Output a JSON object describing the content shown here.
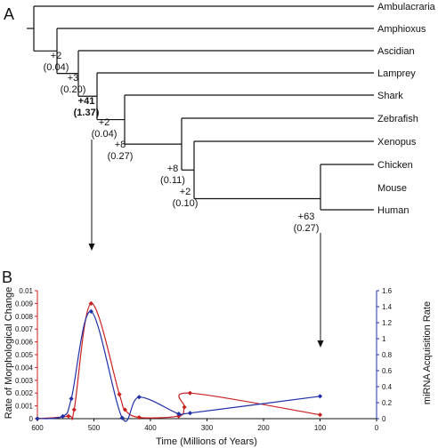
{
  "panel_a": {
    "letter": "A",
    "taxa": [
      "Ambulacraria",
      "Amphioxus",
      "Ascidian",
      "Lamprey",
      "Shark",
      "Zebrafish",
      "Xenopus",
      "Chicken",
      "Mouse",
      "Human"
    ],
    "node_labels": [
      {
        "gain": "+2",
        "rate": "(0.04)",
        "bold": false
      },
      {
        "gain": "+3",
        "rate": "(0.20)",
        "bold": false
      },
      {
        "gain": "+41",
        "rate": "(1.37)",
        "bold": true
      },
      {
        "gain": "+2",
        "rate": "(0.04)",
        "bold": false
      },
      {
        "gain": "+8",
        "rate": "(0.27)",
        "bold": false
      },
      {
        "gain": "+8",
        "rate": "(0.11)",
        "bold": false
      },
      {
        "gain": "+2",
        "rate": "(0.10)",
        "bold": false
      },
      {
        "gain": "+63",
        "rate": "(0.27)",
        "bold": false
      }
    ]
  },
  "panel_b": {
    "letter": "B"
  },
  "colors": {
    "morphology": "#cc1f1f",
    "mirna": "#1f2fa8",
    "tree": "#111111"
  },
  "chart_data": {
    "type": "line",
    "xlabel": "Time (Millions of Years)",
    "ylabel_left": "Rate of Morphological Change",
    "ylabel_right": "miRNA Acquisition Rate",
    "xlim": [
      600,
      0
    ],
    "x_ticks": [
      600,
      500,
      400,
      300,
      200,
      100,
      0
    ],
    "ylim_left": [
      0,
      0.01
    ],
    "y_ticks_left": [
      0,
      0.001,
      0.002,
      0.003,
      0.004,
      0.005,
      0.006,
      0.007,
      0.008,
      0.009,
      0.01
    ],
    "ylim_right": [
      0,
      1.6
    ],
    "y_ticks_right": [
      0,
      0.2,
      0.4,
      0.6,
      0.8,
      1,
      1.2,
      1.4,
      1.6
    ],
    "series": [
      {
        "axis": "left",
        "x": [
          600,
          545,
          535,
          505,
          455,
          445,
          420,
          350,
          340,
          330,
          100
        ],
        "y": [
          0,
          0.0002,
          0.0007,
          0.009,
          0.0019,
          0.0007,
          0.0001,
          0.0002,
          0.0009,
          0.002,
          0.0003
        ]
      },
      {
        "axis": "right",
        "x": [
          600,
          555,
          540,
          505,
          450,
          420,
          350,
          330,
          100
        ],
        "y": [
          0,
          0.03,
          0.25,
          1.34,
          0.01,
          0.27,
          0.06,
          0.07,
          0.28
        ]
      }
    ]
  }
}
